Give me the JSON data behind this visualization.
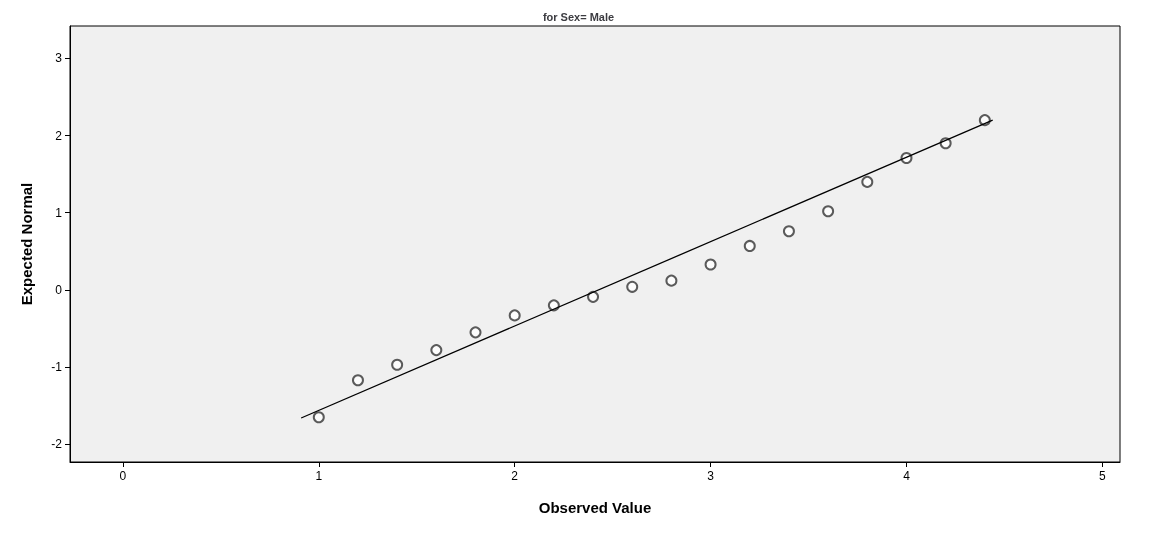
{
  "chart_data": {
    "type": "scatter",
    "title": "for Sex= Male",
    "xlabel": "Observed Value",
    "ylabel": "Expected Normal",
    "series": [
      {
        "type": "scatter",
        "color": "#333333",
        "marker": "circle",
        "x": [
          1,
          1.2,
          1.4,
          1.6,
          1.8,
          2.0,
          2.2,
          2.4,
          2.6,
          2.8,
          3.0,
          3.2,
          3.4,
          3.6,
          3.8,
          4.0,
          4.2,
          4.4
        ],
        "values": [
          -1.65,
          -1.17,
          -0.97,
          -0.78,
          -0.55,
          -0.33,
          -0.2,
          -0.09,
          0.04,
          0.12,
          0.33,
          0.57,
          0.76,
          1.02,
          1.4,
          1.71,
          1.9,
          2.2
        ]
      },
      {
        "type": "line",
        "color": "#000000",
        "marker": "none",
        "x": [
          0.91,
          4.44
        ],
        "values": [
          -1.66,
          2.2
        ]
      }
    ],
    "xlim": [
      -0.27,
      5.09
    ],
    "xticks": [
      0,
      1,
      2,
      3,
      4,
      5
    ],
    "ylim": [
      -2.23,
      3.42
    ],
    "yticks": [
      -2,
      -1,
      0,
      1,
      2,
      3
    ],
    "grid": false
  }
}
